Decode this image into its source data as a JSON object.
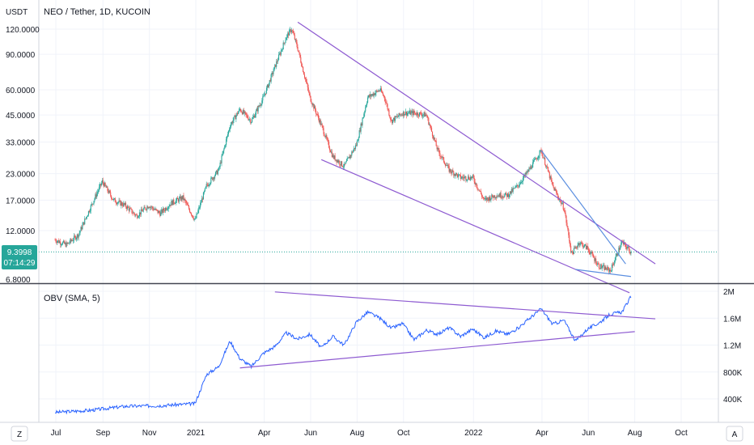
{
  "chart_data": {
    "type": "candlestick",
    "title": "NEO / Tether, 1D, KUCOIN",
    "currency": "USDT",
    "price_scale": "log",
    "last_price": "9.3998",
    "countdown": "07:14:29",
    "price_ticks": [
      "120.0000",
      "90.0000",
      "60.0000",
      "45.0000",
      "33.0000",
      "23.0000",
      "17.0000",
      "12.0000",
      "6.8000"
    ],
    "time_ticks": [
      "Jul",
      "Sep",
      "Nov",
      "2021",
      "Apr",
      "Jun",
      "Aug",
      "Oct",
      "2022",
      "Apr",
      "Jun",
      "Aug",
      "Oct"
    ],
    "series": [
      {
        "name": "NEO / Tether",
        "kind": "candles",
        "x": [
          "2020-06-30",
          "2020-07-15",
          "2020-07-31",
          "2020-08-15",
          "2020-08-31",
          "2020-09-15",
          "2020-09-30",
          "2020-10-15",
          "2020-10-31",
          "2020-11-15",
          "2020-11-30",
          "2020-12-15",
          "2020-12-31",
          "2021-01-15",
          "2021-01-31",
          "2021-02-15",
          "2021-02-28",
          "2021-03-15",
          "2021-03-31",
          "2021-04-15",
          "2021-04-30",
          "2021-05-07",
          "2021-05-15",
          "2021-05-31",
          "2021-06-15",
          "2021-06-30",
          "2021-07-15",
          "2021-07-31",
          "2021-08-15",
          "2021-08-31",
          "2021-09-06",
          "2021-09-15",
          "2021-09-30",
          "2021-10-15",
          "2021-10-31",
          "2021-11-15",
          "2021-11-30",
          "2021-12-15",
          "2021-12-31",
          "2022-01-15",
          "2022-01-31",
          "2022-02-15",
          "2022-02-28",
          "2022-03-15",
          "2022-03-31",
          "2022-04-15",
          "2022-04-30",
          "2022-05-10",
          "2022-05-20",
          "2022-05-31",
          "2022-06-15",
          "2022-06-30",
          "2022-07-15",
          "2022-07-27"
        ],
        "close": [
          10.8,
          10.2,
          11.5,
          15.5,
          21,
          17,
          16,
          14.2,
          16,
          14.6,
          16.5,
          17.5,
          13.5,
          20,
          24,
          40,
          48,
          42,
          55,
          78,
          110,
          120,
          96,
          55,
          40,
          28,
          25,
          32,
          55,
          60,
          55,
          42,
          46,
          46,
          45,
          30,
          24,
          22,
          22,
          17,
          18,
          18,
          20,
          24,
          30,
          20,
          15.5,
          9.2,
          10.5,
          9.8,
          8,
          7.6,
          10.5,
          9.4
        ]
      },
      {
        "name": "OBV (SMA, 5)",
        "kind": "line",
        "x": [
          "2020-06-30",
          "2020-08-15",
          "2020-09-30",
          "2020-11-15",
          "2020-12-31",
          "2021-01-15",
          "2021-01-31",
          "2021-02-15",
          "2021-02-28",
          "2021-03-15",
          "2021-03-31",
          "2021-04-15",
          "2021-04-30",
          "2021-05-15",
          "2021-05-31",
          "2021-06-15",
          "2021-06-30",
          "2021-07-15",
          "2021-07-31",
          "2021-08-15",
          "2021-08-31",
          "2021-09-15",
          "2021-09-30",
          "2021-10-15",
          "2021-10-31",
          "2021-11-15",
          "2021-11-30",
          "2021-12-15",
          "2021-12-31",
          "2022-01-15",
          "2022-01-31",
          "2022-02-15",
          "2022-02-28",
          "2022-03-15",
          "2022-03-31",
          "2022-04-15",
          "2022-04-30",
          "2022-05-15",
          "2022-05-31",
          "2022-06-15",
          "2022-06-30",
          "2022-07-15",
          "2022-07-27"
        ],
        "values": [
          200000,
          230000,
          290000,
          300000,
          330000,
          760000,
          880000,
          1260000,
          1000000,
          880000,
          1080000,
          1180000,
          1380000,
          1290000,
          1360000,
          1160000,
          1330000,
          1200000,
          1540000,
          1690000,
          1600000,
          1450000,
          1520000,
          1280000,
          1420000,
          1360000,
          1460000,
          1330000,
          1440000,
          1310000,
          1410000,
          1360000,
          1450000,
          1590000,
          1740000,
          1510000,
          1570000,
          1260000,
          1440000,
          1530000,
          1660000,
          1690000,
          1920000
        ]
      }
    ],
    "obv_title": "OBV (SMA, 5)",
    "obv_ticks": [
      "2M",
      "1.6M",
      "1.2M",
      "800K",
      "400K"
    ],
    "trendlines_price": [
      {
        "from": [
          "2021-05-15",
          130
        ],
        "to": [
          "2022-08-28",
          8.2
        ],
        "color": "#8e5bd1"
      },
      {
        "from": [
          "2021-06-15",
          27
        ],
        "to": [
          "2022-07-25",
          5.9
        ],
        "color": "#8e5bd1"
      },
      {
        "from": [
          "2022-03-31",
          30
        ],
        "to": [
          "2022-07-20",
          8.2
        ],
        "color": "#5b8fe0"
      },
      {
        "from": [
          "2022-05-15",
          7.7
        ],
        "to": [
          "2022-07-27",
          7.1
        ],
        "color": "#5b8fe0"
      }
    ],
    "trendlines_obv": [
      {
        "from": [
          "2021-04-15",
          1990000
        ],
        "to": [
          "2022-08-28",
          1590000
        ],
        "color": "#8e5bd1"
      },
      {
        "from": [
          "2021-02-28",
          860000
        ],
        "to": [
          "2022-08-01",
          1400000
        ],
        "color": "#8e5bd1"
      }
    ],
    "colors": {
      "up": "#26a69a",
      "down": "#ef5350",
      "obv": "#2962ff",
      "trend": "#8e5bd1",
      "price_line": "#26a69a"
    }
  },
  "toolbar": {
    "left_button": "Z",
    "right_button": "A"
  }
}
